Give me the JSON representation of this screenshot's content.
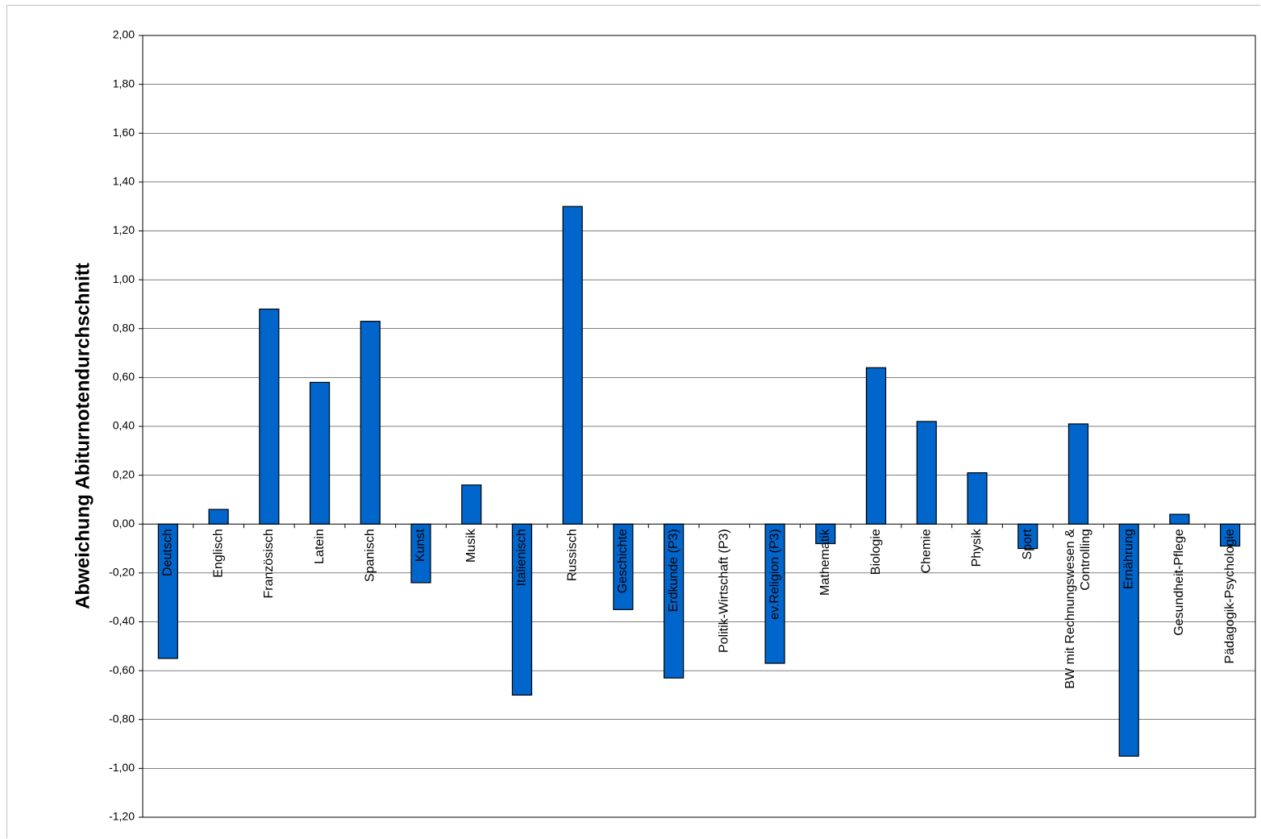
{
  "chart_data": {
    "type": "bar",
    "ylabel": "Abweichung Abiturnotendurchschnitt",
    "xlabel": "",
    "ylim": [
      -1.2,
      2.0
    ],
    "ytick_step": 0.2,
    "grid": true,
    "bar_color": "#0066CC",
    "ytick_labels": [
      "-1,20",
      "-1,00",
      "-0,80",
      "-0,60",
      "-0,40",
      "-0,20",
      "0,00",
      "0,20",
      "0,40",
      "0,60",
      "0,80",
      "1,00",
      "1,20",
      "1,40",
      "1,60",
      "1,80",
      "2,00"
    ],
    "categories": [
      [
        "Deutsch"
      ],
      [
        "Englisch"
      ],
      [
        "Französisch"
      ],
      [
        "Latein"
      ],
      [
        "Spanisch"
      ],
      [
        "Kunst"
      ],
      [
        "Musik"
      ],
      [
        "Italienisch"
      ],
      [
        "Russisch"
      ],
      [
        "Geschichte"
      ],
      [
        "Erdkunde (P3)"
      ],
      [
        "Politik-Wirtschaft (P3)"
      ],
      [
        "ev.Religion (P3)"
      ],
      [
        "Mathematik"
      ],
      [
        "Biologie"
      ],
      [
        "Chemie"
      ],
      [
        "Physik"
      ],
      [
        "Sport"
      ],
      [
        "BW mit Rechnungswesen &",
        "Controlling"
      ],
      [
        "Ernährung"
      ],
      [
        "Gesundheit-Pflege"
      ],
      [
        "Pädagogik-Psychologie"
      ]
    ],
    "values": [
      -0.55,
      0.06,
      0.88,
      0.58,
      0.83,
      -0.24,
      0.16,
      -0.7,
      1.3,
      -0.35,
      -0.63,
      0.0,
      -0.57,
      -0.08,
      0.64,
      0.42,
      0.21,
      -0.1,
      0.41,
      -0.95,
      0.04,
      -0.09
    ]
  }
}
